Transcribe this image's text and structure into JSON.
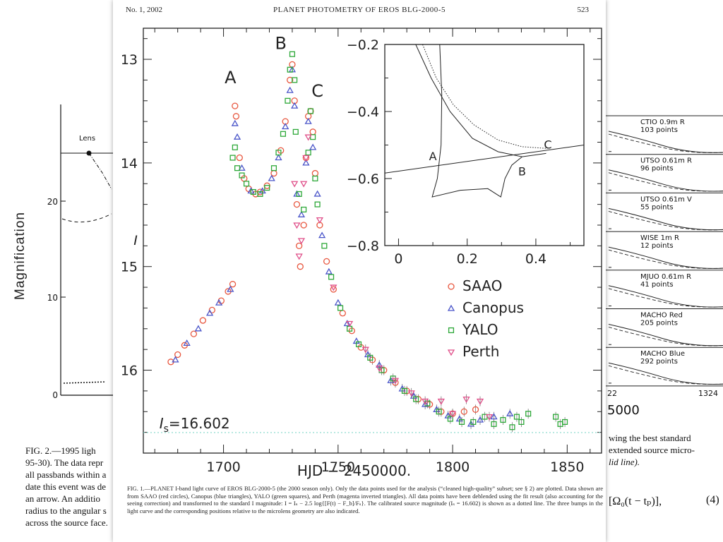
{
  "running_header": {
    "left": "No. 1, 2002",
    "center": "PLANET PHOTOMETRY OF EROS BLG-2000-5",
    "right": "523"
  },
  "left_fragment": {
    "ylabel": "Magnification",
    "lens_label": "Lens",
    "yticks": [
      "20",
      "10",
      "0"
    ],
    "caption_lines": [
      "FIG. 2.—1995 ligh",
      "95-30). The data repr",
      "all passbands within a",
      "date this event was de",
      "an arrow. An additio",
      "radius to the angular s",
      "across the source face."
    ]
  },
  "right_fragment": {
    "panels": [
      {
        "name": "CTIO 0.9m R",
        "count": "103 points"
      },
      {
        "name": "UTSO 0.61m R",
        "count": "96 points"
      },
      {
        "name": "UTSO 0.61m V",
        "count": "55 points"
      },
      {
        "name": "WISE 1m R",
        "count": "12 points"
      },
      {
        "name": "MJUO 0.61m R",
        "count": "41 points"
      },
      {
        "name": "MACHO Red",
        "count": "205 points"
      },
      {
        "name": "MACHO Blue",
        "count": "292 points"
      }
    ],
    "xtick_left": "22",
    "xtick_right": "1324",
    "axis_fragment": "5000",
    "caption_lines": [
      "wing the best standard",
      "extended source micro-",
      "lid line)."
    ],
    "equation": "[Ω₀(t − tₚ)],",
    "equation_number": "(4)"
  },
  "chart_data": [
    {
      "type": "scatter",
      "title": "",
      "xlabel": "HJD − 2450000.",
      "ylabel": "I",
      "xlim": [
        1665,
        1865
      ],
      "ylim": [
        16.8,
        12.7
      ],
      "y_inverted": true,
      "xticks": [
        1700,
        1750,
        1800,
        1850
      ],
      "yticks": [
        13,
        14,
        15,
        16
      ],
      "grid": false,
      "legend_position": "right-middle",
      "hline": {
        "y": 16.602,
        "label": "I_s=16.602",
        "style": "dotted",
        "color": "#7fd6c8"
      },
      "annotations": [
        {
          "text": "A",
          "x": 1703,
          "y": 13.23
        },
        {
          "text": "B",
          "x": 1725,
          "y": 12.9
        },
        {
          "text": "C",
          "x": 1741,
          "y": 13.36
        }
      ],
      "series": [
        {
          "name": "SAAO",
          "marker": "circle",
          "color": "#e8573f",
          "points": [
            [
              1677,
              15.92
            ],
            [
              1680,
              15.85
            ],
            [
              1683,
              15.76
            ],
            [
              1687,
              15.65
            ],
            [
              1691,
              15.52
            ],
            [
              1695,
              15.42
            ],
            [
              1699,
              15.33
            ],
            [
              1702,
              15.24
            ],
            [
              1704,
              15.17
            ],
            [
              1705,
              13.45
            ],
            [
              1705.5,
              13.55
            ],
            [
              1707,
              13.95
            ],
            [
              1709,
              14.15
            ],
            [
              1711,
              14.25
            ],
            [
              1714,
              14.3
            ],
            [
              1716,
              14.28
            ],
            [
              1719,
              14.22
            ],
            [
              1722,
              14.1
            ],
            [
              1725,
              13.88
            ],
            [
              1727,
              13.6
            ],
            [
              1729,
              13.2
            ],
            [
              1730,
              13.05
            ],
            [
              1731,
              13.4
            ],
            [
              1732,
              14.4
            ],
            [
              1733,
              14.8
            ],
            [
              1733.5,
              15.0
            ],
            [
              1735,
              14.6
            ],
            [
              1736,
              13.95
            ],
            [
              1737,
              13.55
            ],
            [
              1738,
              13.5
            ],
            [
              1739,
              13.7
            ],
            [
              1740,
              14.1
            ],
            [
              1742,
              14.6
            ],
            [
              1745,
              14.95
            ],
            [
              1748,
              15.22
            ],
            [
              1752,
              15.45
            ],
            [
              1756,
              15.62
            ],
            [
              1760,
              15.78
            ],
            [
              1765,
              15.9
            ],
            [
              1770,
              16.0
            ],
            [
              1775,
              16.12
            ],
            [
              1780,
              16.2
            ],
            [
              1785,
              16.28
            ],
            [
              1790,
              16.33
            ],
            [
              1795,
              16.4
            ],
            [
              1800,
              16.42
            ],
            [
              1805,
              16.4
            ],
            [
              1810,
              16.38
            ]
          ]
        },
        {
          "name": "Canopus",
          "marker": "triangle",
          "color": "#4a55c9",
          "points": [
            [
              1679,
              15.9
            ],
            [
              1684,
              15.74
            ],
            [
              1689,
              15.6
            ],
            [
              1694,
              15.45
            ],
            [
              1698,
              15.35
            ],
            [
              1703,
              15.22
            ],
            [
              1705,
              13.62
            ],
            [
              1706,
              13.75
            ],
            [
              1708,
              14.05
            ],
            [
              1712,
              14.27
            ],
            [
              1717,
              14.27
            ],
            [
              1721,
              14.15
            ],
            [
              1724,
              13.95
            ],
            [
              1727,
              13.65
            ],
            [
              1729,
              13.3
            ],
            [
              1730,
              13.1
            ],
            [
              1731,
              13.45
            ],
            [
              1732,
              14.3
            ],
            [
              1734,
              14.5
            ],
            [
              1736,
              14.0
            ],
            [
              1737,
              13.6
            ],
            [
              1739,
              13.85
            ],
            [
              1741,
              14.3
            ],
            [
              1743,
              14.7
            ],
            [
              1746,
              15.05
            ],
            [
              1750,
              15.35
            ],
            [
              1754,
              15.55
            ],
            [
              1758,
              15.72
            ],
            [
              1763,
              15.85
            ],
            [
              1768,
              15.95
            ],
            [
              1773,
              16.1
            ],
            [
              1778,
              16.18
            ],
            [
              1783,
              16.25
            ],
            [
              1788,
              16.33
            ],
            [
              1793,
              16.38
            ],
            [
              1798,
              16.44
            ],
            [
              1803,
              16.47
            ],
            [
              1808,
              16.52
            ],
            [
              1812,
              16.48
            ],
            [
              1818,
              16.45
            ],
            [
              1825,
              16.42
            ]
          ]
        },
        {
          "name": "YALO",
          "marker": "square",
          "color": "#2da838",
          "points": [
            [
              1704,
              13.95
            ],
            [
              1705,
              13.85
            ],
            [
              1706,
              14.05
            ],
            [
              1708,
              14.12
            ],
            [
              1710,
              14.2
            ],
            [
              1713,
              14.28
            ],
            [
              1716,
              14.3
            ],
            [
              1719,
              14.24
            ],
            [
              1722,
              14.05
            ],
            [
              1724,
              13.9
            ],
            [
              1726,
              13.72
            ],
            [
              1728,
              13.4
            ],
            [
              1729,
              13.1
            ],
            [
              1730,
              12.95
            ],
            [
              1731,
              13.2
            ],
            [
              1731.5,
              13.7
            ],
            [
              1733,
              14.3
            ],
            [
              1735,
              14.45
            ],
            [
              1737,
              13.9
            ],
            [
              1738,
              13.5
            ],
            [
              1739,
              13.75
            ],
            [
              1740,
              14.15
            ],
            [
              1741,
              14.4
            ],
            [
              1744,
              14.8
            ],
            [
              1747,
              15.1
            ],
            [
              1751,
              15.4
            ],
            [
              1755,
              15.6
            ],
            [
              1759,
              15.75
            ],
            [
              1764,
              15.88
            ],
            [
              1769,
              16.0
            ],
            [
              1774,
              16.08
            ],
            [
              1779,
              16.2
            ],
            [
              1784,
              16.28
            ],
            [
              1789,
              16.32
            ],
            [
              1794,
              16.4
            ],
            [
              1799,
              16.47
            ],
            [
              1804,
              16.5
            ],
            [
              1809,
              16.5
            ],
            [
              1814,
              16.45
            ],
            [
              1818,
              16.52
            ],
            [
              1822,
              16.48
            ],
            [
              1826,
              16.55
            ],
            [
              1828,
              16.45
            ],
            [
              1830,
              16.5
            ],
            [
              1833,
              16.42
            ],
            [
              1845,
              16.45
            ],
            [
              1847,
              16.52
            ],
            [
              1849,
              16.5
            ]
          ]
        },
        {
          "name": "Perth",
          "marker": "inverted-triangle",
          "color": "#e0508a",
          "points": [
            [
              1731,
              14.2
            ],
            [
              1732,
              14.6
            ],
            [
              1733,
              14.9
            ],
            [
              1734,
              14.75
            ],
            [
              1735,
              14.2
            ],
            [
              1736,
              13.95
            ],
            [
              1737,
              13.75
            ],
            [
              1742,
              14.55
            ],
            [
              1748,
              15.2
            ],
            [
              1755,
              15.55
            ],
            [
              1762,
              15.8
            ],
            [
              1768,
              15.98
            ],
            [
              1775,
              16.1
            ],
            [
              1782,
              16.22
            ],
            [
              1788,
              16.3
            ],
            [
              1795,
              16.3
            ],
            [
              1800,
              16.42
            ],
            [
              1806,
              16.28
            ],
            [
              1812,
              16.3
            ],
            [
              1816,
              16.45
            ]
          ]
        }
      ]
    },
    {
      "type": "line",
      "title": "",
      "xlabel": "",
      "ylabel": "",
      "xlim": [
        -0.04,
        0.54
      ],
      "ylim": [
        -0.8,
        -0.2
      ],
      "xticks": [
        "0",
        "0.2",
        "0.4"
      ],
      "yticks": [
        "−0.2",
        "−0.4",
        "−0.6",
        "−0.8"
      ],
      "annotations": [
        {
          "text": "A",
          "x": 0.1,
          "y": -0.545
        },
        {
          "text": "B",
          "x": 0.36,
          "y": -0.59
        },
        {
          "text": "C",
          "x": 0.435,
          "y": -0.51
        }
      ],
      "series": [
        {
          "points": [
            [
              -0.05,
              -0.585
            ],
            [
              0.54,
              -0.5
            ]
          ],
          "style": "solid"
        },
        {
          "points": [
            [
              0.05,
              -0.2
            ],
            [
              0.095,
              -0.3
            ],
            [
              0.15,
              -0.4
            ],
            [
              0.215,
              -0.48
            ],
            [
              0.29,
              -0.52
            ],
            [
              0.36,
              -0.535
            ],
            [
              0.43,
              -0.525
            ]
          ],
          "style": "solid"
        },
        {
          "points": [
            [
              0.07,
              -0.2
            ],
            [
              0.11,
              -0.3
            ],
            [
              0.16,
              -0.38
            ],
            [
              0.22,
              -0.44
            ],
            [
              0.29,
              -0.485
            ],
            [
              0.36,
              -0.505
            ],
            [
              0.43,
              -0.51
            ]
          ],
          "style": "dotted"
        },
        {
          "points": [
            [
              0.12,
              -0.2
            ],
            [
              0.126,
              -0.35
            ],
            [
              0.124,
              -0.5
            ],
            [
              0.113,
              -0.6
            ],
            [
              0.098,
              -0.655
            ],
            [
              0.18,
              -0.635
            ],
            [
              0.26,
              -0.63
            ],
            [
              0.298,
              -0.655
            ],
            [
              0.31,
              -0.6
            ],
            [
              0.33,
              -0.56
            ],
            [
              0.36,
              -0.535
            ]
          ],
          "style": "solid"
        }
      ]
    }
  ],
  "figure_caption": "FIG. 1.—PLANET I-band light curve of EROS BLG-2000-5 (the 2000 season only). Only the data points used for the analysis (“cleaned high-quality” subset; see § 2) are plotted. Data shown are from SAAO (red circles), Canopus (blue triangles), YALO (green squares), and Perth (magenta inverted triangles). All data points have been deblended using the fit result (also accounting for the seeing correction) and transformed to the standard I magnitude: I = Iₛ − 2.5 log{[F(t) − F_b]/Fₛ}. The calibrated source magnitude (Iₛ = 16.602) is shown as a dotted line. The three bumps in the light curve and the corresponding positions relative to the microlens geometry are also indicated."
}
